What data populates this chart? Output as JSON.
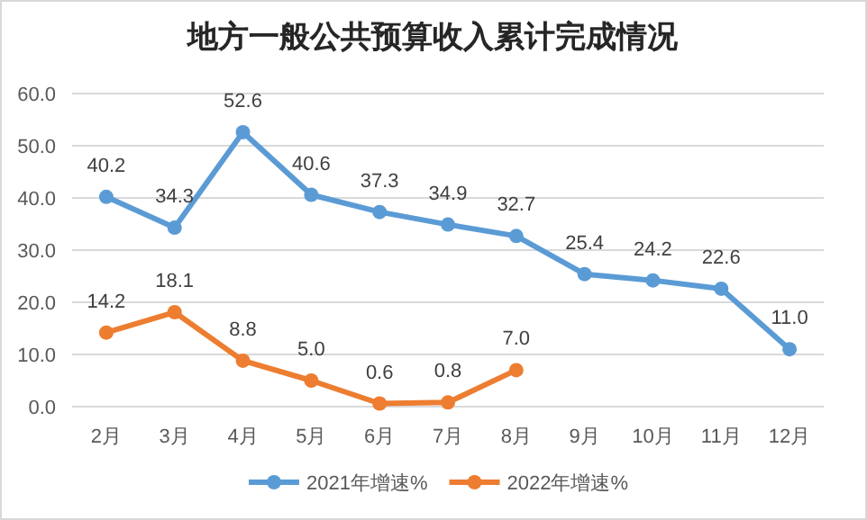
{
  "chart_data": {
    "type": "line",
    "title": "地方一般公共预算收入累计完成情况",
    "categories": [
      "2月",
      "3月",
      "4月",
      "5月",
      "6月",
      "7月",
      "8月",
      "9月",
      "10月",
      "11月",
      "12月"
    ],
    "series": [
      {
        "name": "2021年增速%",
        "color": "#5b9bd5",
        "values": [
          40.2,
          34.3,
          52.6,
          40.6,
          37.3,
          34.9,
          32.7,
          25.4,
          24.2,
          22.6,
          11.0
        ],
        "value_labels": [
          "40.2",
          "34.3",
          "52.6",
          "40.6",
          "37.3",
          "34.9",
          "32.7",
          "25.4",
          "24.2",
          "22.6",
          "11.0"
        ]
      },
      {
        "name": "2022年增速%",
        "color": "#ed7d31",
        "values": [
          14.2,
          18.1,
          8.8,
          5.0,
          0.6,
          0.8,
          7.0,
          null,
          null,
          null,
          null
        ],
        "value_labels": [
          "14.2",
          "18.1",
          "8.8",
          "5.0",
          "0.6",
          "0.8",
          "7.0",
          null,
          null,
          null,
          null
        ]
      }
    ],
    "ylim": [
      0,
      60
    ],
    "yticks": [
      {
        "value": 0,
        "label": "0.0"
      },
      {
        "value": 10,
        "label": "10.0"
      },
      {
        "value": 20,
        "label": "20.0"
      },
      {
        "value": 30,
        "label": "30.0"
      },
      {
        "value": 40,
        "label": "40.0"
      },
      {
        "value": 50,
        "label": "50.0"
      },
      {
        "value": 60,
        "label": "60.0"
      }
    ],
    "grid": "y",
    "legend": "bottom",
    "marker": "circle",
    "line_style": "solid"
  }
}
